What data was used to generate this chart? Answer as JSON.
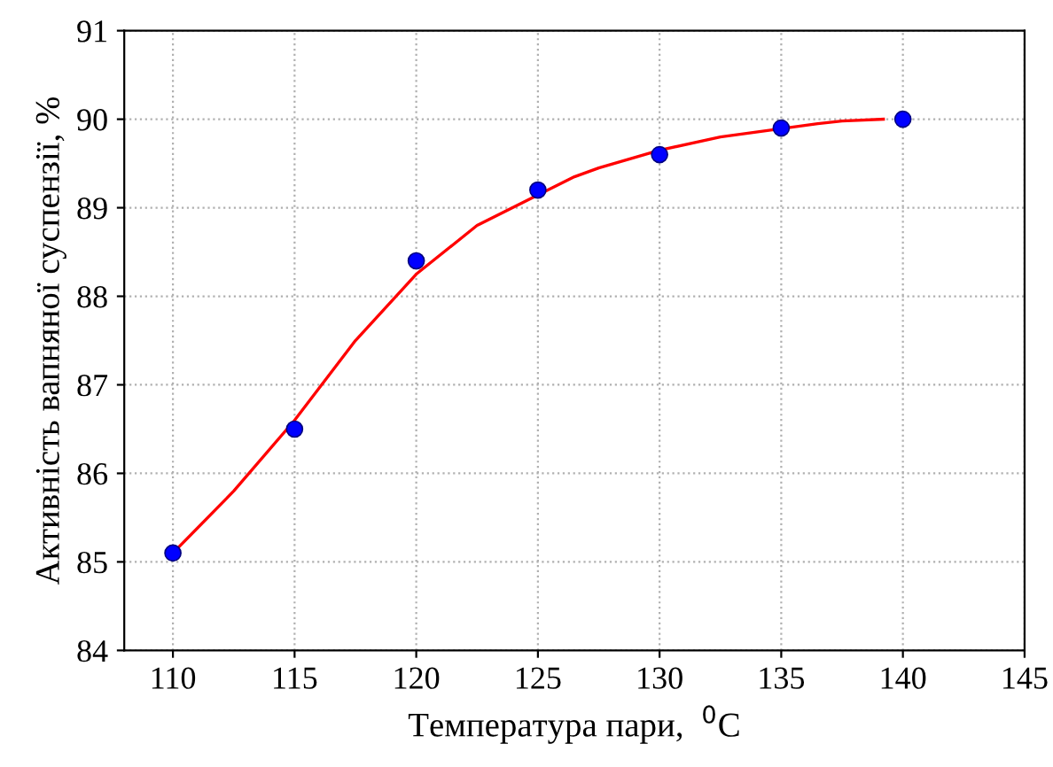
{
  "chart_data": {
    "type": "scatter",
    "xlabel": "Температура пари,  $^{0}$C",
    "ylabel": "Активність вапняної суспензії, %",
    "xlim": [
      108,
      145
    ],
    "xticks": [
      110,
      115,
      120,
      125,
      130,
      135,
      140,
      145
    ],
    "ylim": [
      84,
      91
    ],
    "yticks": [
      84,
      85,
      86,
      87,
      88,
      89,
      90,
      91
    ],
    "grid": true,
    "series": [
      {
        "type": "line",
        "color": "#ff0000",
        "marker": "none",
        "line_style": "solid",
        "x": [
          110,
          112.5,
          115,
          117.5,
          120,
          122.5,
          126.5,
          127.5,
          130,
          132.5,
          136.5,
          137.5,
          139.2
        ],
        "values": [
          85.1,
          85.8,
          86.6,
          87.5,
          88.25,
          88.8,
          89.35,
          89.45,
          89.65,
          89.8,
          89.95,
          89.98,
          90.0
        ]
      },
      {
        "type": "scatter",
        "color": "#0000ff",
        "marker": "circle",
        "x": [
          110,
          115,
          120,
          125,
          130,
          135,
          140
        ],
        "values": [
          85.1,
          86.5,
          88.4,
          89.2,
          89.6,
          89.9,
          90.0
        ]
      }
    ]
  }
}
